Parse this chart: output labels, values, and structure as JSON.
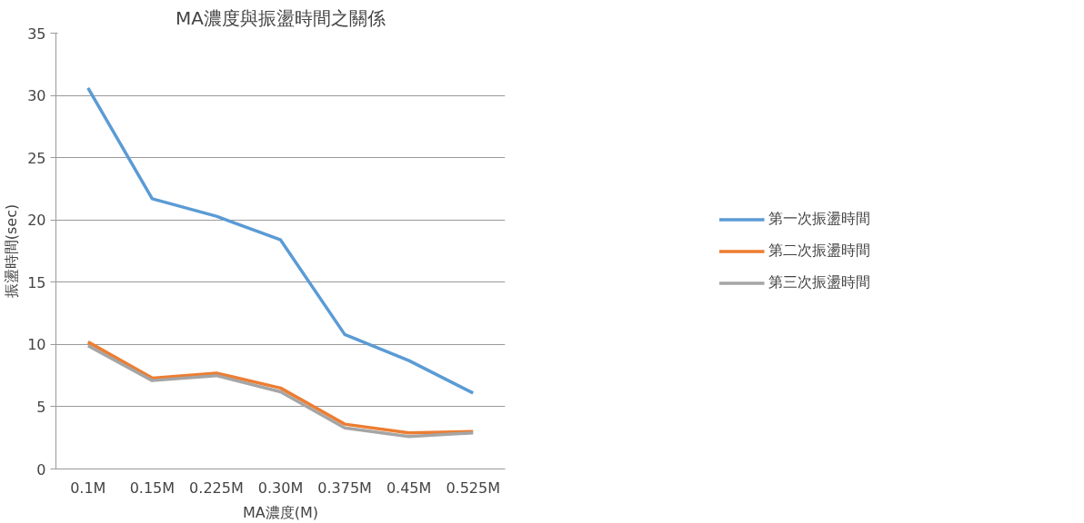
{
  "chart_data": {
    "type": "line",
    "title": "MA濃度與振盪時間之關係",
    "xlabel": "MA濃度(M)",
    "ylabel": "振盪時間(sec)",
    "categories": [
      "0.1M",
      "0.15M",
      "0.225M",
      "0.30M",
      "0.375M",
      "0.45M",
      "0.525M"
    ],
    "series": [
      {
        "name": "第一次振盪時間",
        "color": "#5b9bd5",
        "values": [
          30.6,
          21.7,
          20.3,
          18.4,
          10.8,
          8.7,
          6.1
        ]
      },
      {
        "name": "第二次振盪時間",
        "color": "#ed7d31",
        "values": [
          10.2,
          7.3,
          7.7,
          6.5,
          3.6,
          2.9,
          3.0
        ]
      },
      {
        "name": "第三次振盪時間",
        "color": "#a5a5a5",
        "values": [
          9.9,
          7.1,
          7.5,
          6.2,
          3.3,
          2.6,
          2.9
        ]
      }
    ],
    "ylim": [
      0,
      35
    ],
    "yticks": [
      0,
      5,
      10,
      15,
      20,
      25,
      30,
      35
    ],
    "grid": "y",
    "legend": "right",
    "marker": "none",
    "line_style": "solid"
  }
}
